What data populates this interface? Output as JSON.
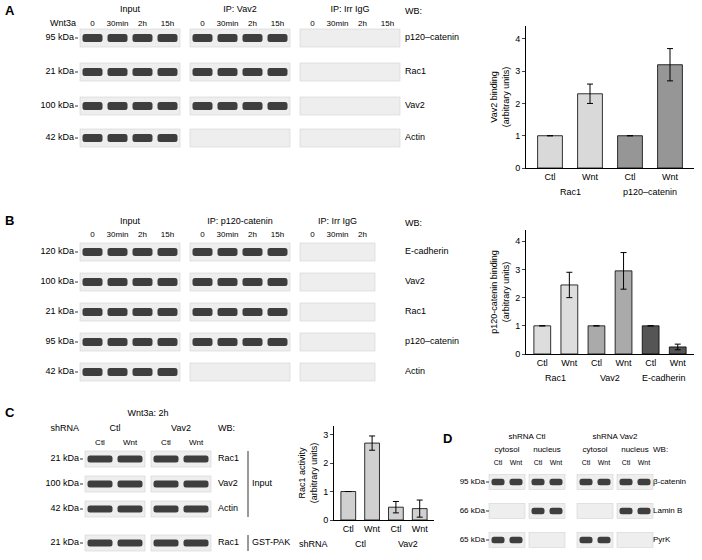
{
  "chart_data": [
    {
      "type": "bar",
      "ylabel": [
        "Vav2 binding",
        "(arbitrary units)"
      ],
      "categories": [
        "Ctl",
        "Wnt",
        "Ctl",
        "Wnt"
      ],
      "groups": [
        "Rac1",
        "Rac1",
        "p120–catenin",
        "p120–catenin"
      ],
      "values": [
        1,
        2.3,
        1,
        3.2
      ],
      "errors": [
        null,
        0.3,
        null,
        0.5
      ],
      "colors": [
        "#d9d9d9",
        "#d9d9d9",
        "#969696",
        "#969696"
      ],
      "ylim": [
        0,
        4.4
      ],
      "yticks": [
        0,
        1,
        2,
        3,
        4
      ],
      "grid": false
    },
    {
      "type": "bar",
      "ylabel": [
        "p120-catenin binding",
        "(arbitrary units)"
      ],
      "categories": [
        "Ctl",
        "Wnt",
        "Ctl",
        "Wnt",
        "Ctl",
        "Wnt"
      ],
      "groups": [
        "Rac1",
        "Rac1",
        "Vav2",
        "Vav2",
        "E-cadherin",
        "E-cadherin"
      ],
      "values": [
        1,
        2.45,
        1,
        2.95,
        1,
        0.25
      ],
      "errors": [
        null,
        0.45,
        null,
        0.65,
        null,
        0.1
      ],
      "colors": [
        "#dddddd",
        "#dddddd",
        "#aaaaaa",
        "#aaaaaa",
        "#555555",
        "#555555"
      ],
      "ylim": [
        0,
        4.4
      ],
      "yticks": [
        0,
        1,
        2,
        3,
        4
      ],
      "grid": false
    },
    {
      "type": "bar",
      "ylabel": [
        "Rac1 activity",
        "(arbitrary units)"
      ],
      "categories": [
        "Ctl",
        "Wnt",
        "Ctl",
        "Wnt"
      ],
      "groups": [
        "Ctl",
        "Ctl",
        "Vav2",
        "Vav2"
      ],
      "group_title": "shRNA",
      "values": [
        1,
        2.7,
        0.45,
        0.4
      ],
      "errors": [
        null,
        0.25,
        0.2,
        0.3
      ],
      "colors": [
        "#d0d0d0",
        "#d0d0d0",
        "#d0d0d0",
        "#d0d0d0"
      ],
      "ylim": [
        0,
        3.3
      ],
      "yticks": [
        0,
        1,
        2,
        3
      ],
      "grid": false
    }
  ],
  "blots": [
    {
      "letter": "A",
      "header": "Wnt3a",
      "wb": "WB:",
      "sections": [
        {
          "title": "Input",
          "lanes": [
            "0",
            "30min",
            "2h",
            "15h"
          ],
          "bands": [
            true,
            true,
            true,
            true
          ]
        },
        {
          "title": "IP: Vav2",
          "lanes": [
            "0",
            "30min",
            "2h",
            "15h"
          ],
          "bands": [
            true,
            true,
            true,
            false
          ]
        },
        {
          "title": "IP: Irr IgG",
          "lanes": [
            "0",
            "30min",
            "2h",
            "15h"
          ],
          "bands": [
            false,
            false,
            false,
            false
          ]
        }
      ],
      "rows": [
        {
          "mw": "95 kDa",
          "target": "p120–catenin"
        },
        {
          "mw": "21 kDa",
          "target": "Rac1"
        },
        {
          "mw": "100 kDa",
          "target": "Vav2"
        },
        {
          "mw": "42 kDa",
          "target": "Actin"
        }
      ]
    },
    {
      "letter": "B",
      "wb": "WB:",
      "sections": [
        {
          "title": "Input",
          "lanes": [
            "0",
            "30min",
            "2h",
            "15h"
          ],
          "bands": [
            true,
            true,
            true,
            true,
            true
          ]
        },
        {
          "title": "IP: p120-catenin",
          "lanes": [
            "0",
            "30min",
            "2h",
            "15h"
          ],
          "bands": [
            true,
            true,
            true,
            true,
            false
          ]
        },
        {
          "title": "IP: Irr IgG",
          "lanes": [
            "0",
            "30min",
            "2h"
          ],
          "bands": [
            false,
            false,
            false,
            false,
            false
          ]
        }
      ],
      "rows": [
        {
          "mw": "120 kDa",
          "target": "E-cadherin"
        },
        {
          "mw": "100 kDa",
          "target": "Vav2"
        },
        {
          "mw": "21 kDa",
          "target": "Rac1"
        },
        {
          "mw": "95 kDa",
          "target": "p120–catenin"
        },
        {
          "mw": "42 kDa",
          "target": "Actin"
        }
      ]
    },
    {
      "letter": "C",
      "header": "Wnt3a: 2h",
      "wb": "WB:",
      "section_header": "shRNA",
      "sections": [
        {
          "title": "Ctl",
          "lanes": [
            "Ctl",
            "Wnt"
          ],
          "bands": [
            true,
            true,
            true,
            true
          ]
        },
        {
          "title": "Vav2",
          "lanes": [
            "Ctl",
            "Wnt"
          ],
          "bands": [
            true,
            true,
            true,
            true
          ]
        }
      ],
      "rows": [
        {
          "mw": "21 kDa",
          "target": "Rac1"
        },
        {
          "mw": "100 kDa",
          "target": "Vav2"
        },
        {
          "mw": "42 kDa",
          "target": "Actin"
        },
        {
          "mw": "21 kDa",
          "target": "Rac1"
        }
      ],
      "brackets": [
        {
          "label": "Input",
          "rows": [
            0,
            2
          ]
        },
        {
          "label": "GST-PAK",
          "rows": [
            3,
            3
          ]
        }
      ]
    },
    {
      "letter": "D",
      "wb": "WB:",
      "groups": [
        {
          "title": "shRNA Ctl",
          "sections": [
            {
              "title": "cytosol",
              "lanes": [
                "Ctl",
                "Wnt"
              ],
              "bands": [
                true,
                false,
                true
              ]
            },
            {
              "title": "nucleus",
              "lanes": [
                "Ctl",
                "Wnt"
              ],
              "bands": [
                true,
                true,
                false
              ]
            }
          ]
        },
        {
          "title": "shRNA Vav2",
          "sections": [
            {
              "title": "cytosol",
              "lanes": [
                "Ctl",
                "Wnt"
              ],
              "bands": [
                true,
                false,
                true
              ]
            },
            {
              "title": "nucleus",
              "lanes": [
                "Ctl",
                "Wnt"
              ],
              "bands": [
                true,
                true,
                false
              ]
            }
          ]
        }
      ],
      "rows": [
        {
          "mw": "95 kDa",
          "target": "β-catenin"
        },
        {
          "mw": "66 kDa",
          "target": "Lamin B"
        },
        {
          "mw": "65 kDa",
          "target": "PyrK"
        }
      ]
    }
  ]
}
